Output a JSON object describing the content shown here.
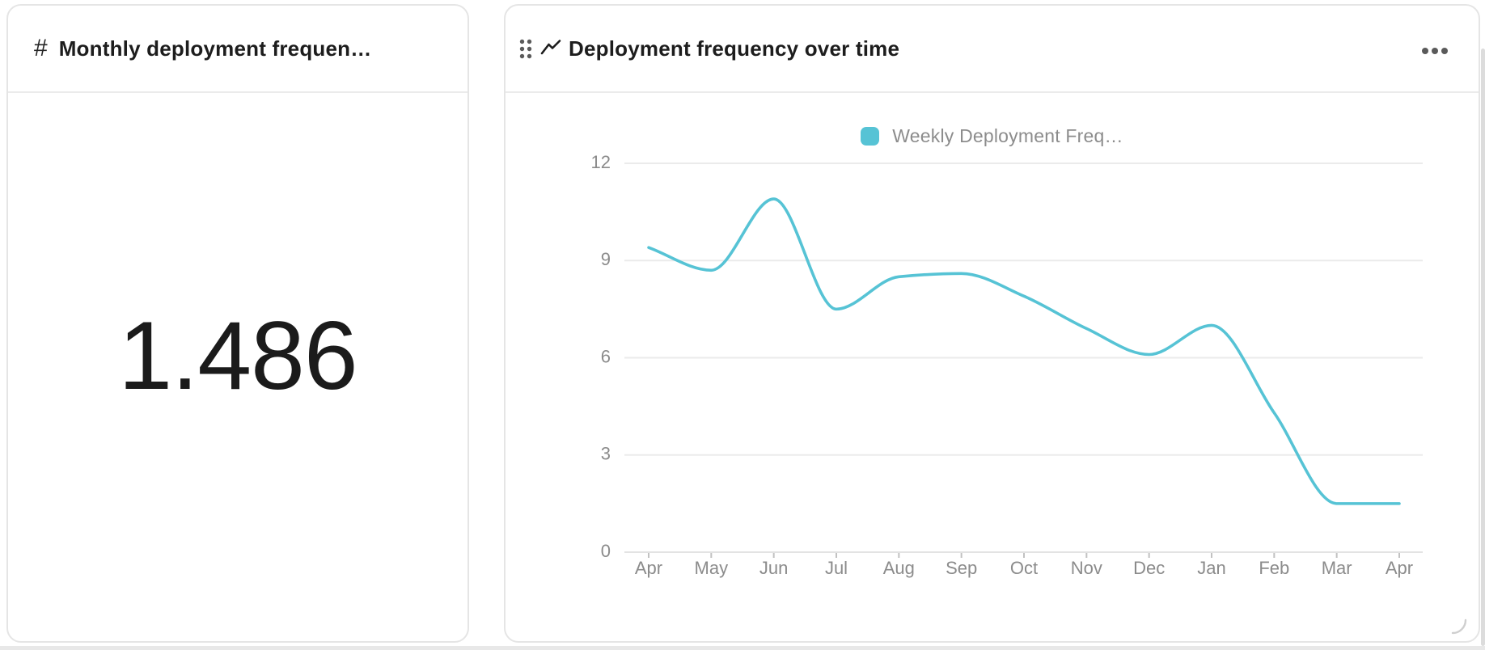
{
  "metric_card": {
    "icon": "#",
    "title": "Monthly deployment frequen…",
    "value": "1.486"
  },
  "chart_card": {
    "title": "Deployment frequency over time",
    "legend": {
      "label": "Weekly Deployment Freq…"
    }
  },
  "chart_data": {
    "type": "line",
    "title": "Deployment frequency over time",
    "x": [
      "Apr",
      "May",
      "Jun",
      "Jul",
      "Aug",
      "Sep",
      "Oct",
      "Nov",
      "Dec",
      "Jan",
      "Feb",
      "Mar",
      "Apr"
    ],
    "series": [
      {
        "name": "Weekly Deployment Freq…",
        "color": "#56c3d5",
        "values": [
          9.4,
          8.7,
          10.9,
          7.5,
          8.5,
          8.6,
          7.9,
          6.9,
          6.1,
          7.0,
          4.3,
          1.5,
          1.5
        ]
      }
    ],
    "ylim": [
      0,
      12
    ],
    "yticks": [
      0,
      3,
      6,
      9,
      12
    ],
    "grid": true,
    "legend_position": "top-center",
    "curve": "smooth-monotone"
  },
  "colors": {
    "accent_teal": "#56c3d5",
    "card_border": "#e5e5e5",
    "grid_line": "#ebebeb",
    "axis_line": "#e3e3e3",
    "tick_mark": "#c2c2c2",
    "axis_text": "#8b8b8b",
    "title_text": "#1d1d1d",
    "icon_gray": "#5a5a5a"
  }
}
